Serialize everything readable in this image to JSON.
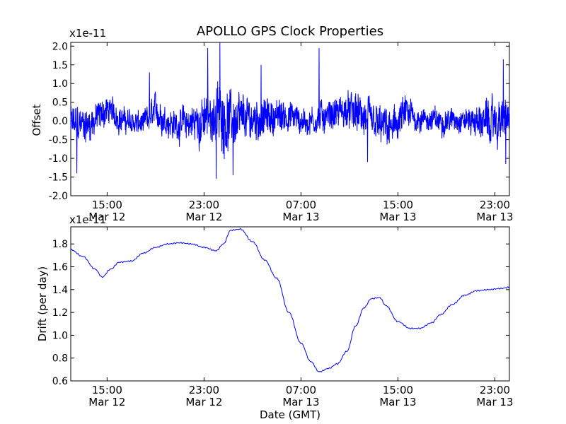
{
  "chart_data": [
    {
      "type": "line",
      "title": "APOLLO GPS Clock Properties",
      "xlabel": "",
      "ylabel": "Offset",
      "offset_text": "x1e-11",
      "x_unit": "hours since 12:00 GMT Mar 12",
      "xlim": [
        0,
        36.2
      ],
      "ylim": [
        -2.0,
        2.1
      ],
      "yticks": [
        -2.0,
        -1.5,
        -1.0,
        -0.5,
        0.0,
        0.5,
        1.0,
        1.5,
        2.0
      ],
      "ytick_labels": [
        "-2.0",
        "-1.5",
        "-1.0",
        "-0.5",
        "0.0",
        "0.5",
        "1.0",
        "1.5",
        "2.0"
      ],
      "xticks": [
        {
          "x": 3,
          "time": "15:00",
          "date": "Mar 12"
        },
        {
          "x": 11,
          "time": "23:00",
          "date": "Mar 12"
        },
        {
          "x": 19,
          "time": "07:00",
          "date": "Mar 13"
        },
        {
          "x": 27,
          "time": "15:00",
          "date": "Mar 13"
        },
        {
          "x": 35,
          "time": "23:00",
          "date": "Mar 13"
        }
      ],
      "series": [
        {
          "name": "Offset",
          "color": "#0000ff",
          "envelope_note": "noisy trace around 0, values read as approximate local lows/highs",
          "x": [
            0,
            1.5,
            3.0,
            4.5,
            6.0,
            7.0,
            8.5,
            10.0,
            11.0,
            11.8,
            12.5,
            13.5,
            15.0,
            16.5,
            18.0,
            19.5,
            21.0,
            22.5,
            23.5,
            25.0,
            26.5,
            27.5,
            29.0,
            30.5,
            32.0,
            33.5,
            35.0,
            36.2
          ],
          "low": [
            -0.9,
            -0.8,
            -0.3,
            -0.5,
            -0.6,
            -0.4,
            -0.7,
            -0.8,
            -1.0,
            -0.9,
            -1.2,
            -1.1,
            -0.8,
            -0.6,
            -0.5,
            -0.6,
            -0.5,
            -0.4,
            -0.6,
            -0.9,
            -1.0,
            -0.6,
            -0.4,
            -0.5,
            -0.4,
            -0.6,
            -1.0,
            -0.6
          ],
          "high": [
            0.7,
            0.6,
            0.9,
            0.5,
            0.4,
            0.9,
            0.5,
            0.7,
            1.0,
            1.2,
            1.5,
            1.0,
            0.9,
            0.8,
            0.8,
            0.5,
            0.8,
            0.9,
            1.0,
            0.7,
            0.5,
            0.9,
            0.5,
            0.5,
            0.5,
            0.6,
            0.9,
            0.8
          ],
          "spikes": [
            {
              "x": 11.3,
              "y": 1.95
            },
            {
              "x": 12.3,
              "y": 2.1
            },
            {
              "x": 12.0,
              "y": -1.55
            },
            {
              "x": 13.4,
              "y": -1.45
            },
            {
              "x": 20.5,
              "y": 1.95
            },
            {
              "x": 24.5,
              "y": -1.1
            },
            {
              "x": 35.7,
              "y": 1.65
            },
            {
              "x": 35.9,
              "y": -1.15
            },
            {
              "x": 0.5,
              "y": -1.4
            },
            {
              "x": 6.5,
              "y": 1.3
            },
            {
              "x": 15.7,
              "y": 1.5
            }
          ]
        }
      ]
    },
    {
      "type": "line",
      "title": "",
      "xlabel": "Date (GMT)",
      "ylabel": "Drift (per day)",
      "offset_text": "x1e-11",
      "x_unit": "hours since 12:00 GMT Mar 12",
      "xlim": [
        0,
        36.2
      ],
      "ylim": [
        0.6,
        1.95
      ],
      "yticks": [
        0.6,
        0.8,
        1.0,
        1.2,
        1.4,
        1.6,
        1.8
      ],
      "ytick_labels": [
        "0.6",
        "0.8",
        "1.0",
        "1.2",
        "1.4",
        "1.6",
        "1.8"
      ],
      "xticks": [
        {
          "x": 3,
          "time": "15:00",
          "date": "Mar 12"
        },
        {
          "x": 11,
          "time": "23:00",
          "date": "Mar 12"
        },
        {
          "x": 19,
          "time": "07:00",
          "date": "Mar 13"
        },
        {
          "x": 27,
          "time": "15:00",
          "date": "Mar 13"
        },
        {
          "x": 35,
          "time": "23:00",
          "date": "Mar 13"
        }
      ],
      "series": [
        {
          "name": "Drift",
          "color": "#0000ff",
          "x": [
            0,
            1.0,
            2.0,
            2.6,
            3.3,
            4.0,
            5.0,
            6.0,
            7.0,
            8.0,
            9.0,
            10.0,
            11.0,
            12.0,
            12.6,
            13.2,
            14.0,
            15.0,
            16.0,
            17.0,
            18.0,
            19.0,
            19.8,
            20.5,
            21.3,
            22.0,
            22.8,
            23.5,
            24.2,
            24.8,
            25.5,
            26.0,
            27.0,
            28.0,
            28.8,
            29.8,
            30.5,
            31.5,
            32.5,
            33.5,
            34.5,
            35.5,
            36.2
          ],
          "y": [
            1.75,
            1.69,
            1.58,
            1.51,
            1.58,
            1.64,
            1.65,
            1.72,
            1.77,
            1.8,
            1.81,
            1.8,
            1.77,
            1.74,
            1.8,
            1.92,
            1.93,
            1.82,
            1.66,
            1.5,
            1.2,
            0.93,
            0.77,
            0.68,
            0.71,
            0.75,
            0.86,
            1.08,
            1.24,
            1.32,
            1.33,
            1.26,
            1.12,
            1.06,
            1.06,
            1.11,
            1.18,
            1.27,
            1.35,
            1.39,
            1.4,
            1.41,
            1.42
          ]
        }
      ]
    }
  ]
}
